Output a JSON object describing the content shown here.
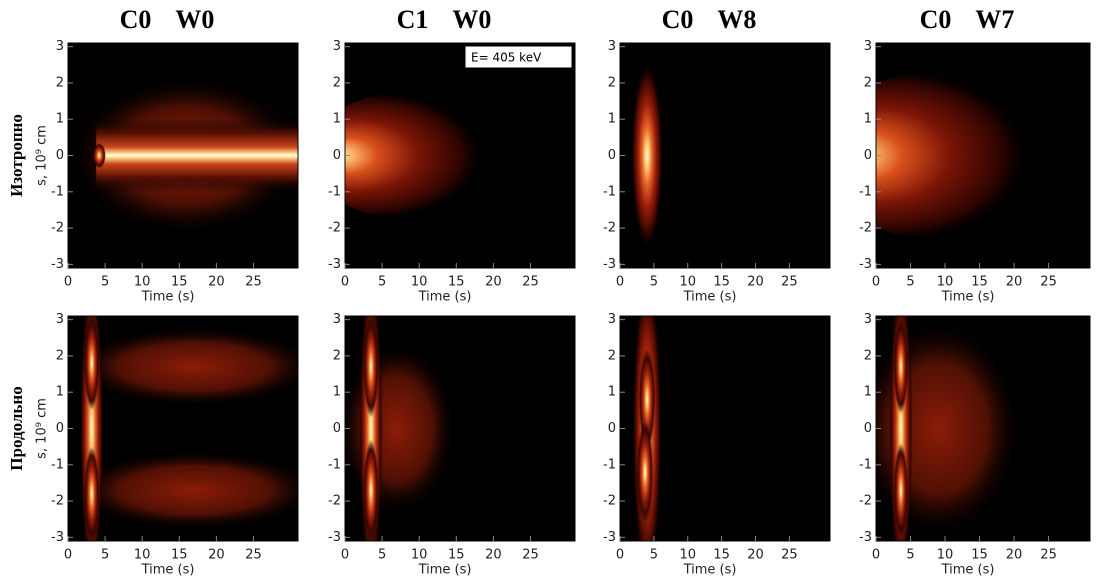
{
  "chart_data": [
    {
      "type": "heatmap",
      "title": "C0 W0",
      "row_label": "Изотропно",
      "ylabel": "s, 10⁹ cm",
      "xlabel": "Time (s)",
      "xlim": [
        0,
        31
      ],
      "ylim": [
        -3.1,
        3.1
      ],
      "xticks": [
        0,
        5,
        10,
        15,
        20,
        25
      ],
      "yticks": [
        -3,
        -2,
        -1,
        0,
        1,
        2,
        3
      ]
    },
    {
      "type": "heatmap",
      "title": "C1 W0",
      "annotation": "E= 405 keV",
      "xlabel": "Time (s)",
      "xlim": [
        0,
        31
      ],
      "ylim": [
        -3.1,
        3.1
      ],
      "xticks": [
        0,
        5,
        10,
        15,
        20,
        25
      ],
      "yticks": [
        -3,
        -2,
        -1,
        0,
        1,
        2,
        3
      ]
    },
    {
      "type": "heatmap",
      "title": "C0 W8",
      "xlabel": "Time (s)",
      "xlim": [
        0,
        31
      ],
      "ylim": [
        -3.1,
        3.1
      ],
      "xticks": [
        0,
        5,
        10,
        15,
        20,
        25
      ],
      "yticks": [
        -3,
        -2,
        -1,
        0,
        1,
        2,
        3
      ]
    },
    {
      "type": "heatmap",
      "title": "C0 W7",
      "xlabel": "Time (s)",
      "xlim": [
        0,
        31
      ],
      "ylim": [
        -3.1,
        3.1
      ],
      "xticks": [
        0,
        5,
        10,
        15,
        20,
        25
      ],
      "yticks": [
        -3,
        -2,
        -1,
        0,
        1,
        2,
        3
      ]
    },
    {
      "type": "heatmap",
      "row_label": "Продольно",
      "ylabel": "s, 10⁹ cm",
      "xlabel": "Time (s)",
      "xlim": [
        0,
        31
      ],
      "ylim": [
        -3.1,
        3.1
      ],
      "xticks": [
        0,
        5,
        10,
        15,
        20,
        25
      ],
      "yticks": [
        -3,
        -2,
        -1,
        0,
        1,
        2,
        3
      ]
    },
    {
      "type": "heatmap",
      "xlabel": "Time (s)",
      "xlim": [
        0,
        31
      ],
      "ylim": [
        -3.1,
        3.1
      ],
      "xticks": [
        0,
        5,
        10,
        15,
        20,
        25
      ],
      "yticks": [
        -3,
        -2,
        -1,
        0,
        1,
        2,
        3
      ]
    },
    {
      "type": "heatmap",
      "xlabel": "Time (s)",
      "xlim": [
        0,
        31
      ],
      "ylim": [
        -3.1,
        3.1
      ],
      "xticks": [
        0,
        5,
        10,
        15,
        20,
        25
      ],
      "yticks": [
        -3,
        -2,
        -1,
        0,
        1,
        2,
        3
      ]
    },
    {
      "type": "heatmap",
      "xlabel": "Time (s)",
      "xlim": [
        0,
        31
      ],
      "ylim": [
        -3.1,
        3.1
      ],
      "xticks": [
        0,
        5,
        10,
        15,
        20,
        25
      ],
      "yticks": [
        -3,
        -2,
        -1,
        0,
        1,
        2,
        3
      ]
    }
  ]
}
